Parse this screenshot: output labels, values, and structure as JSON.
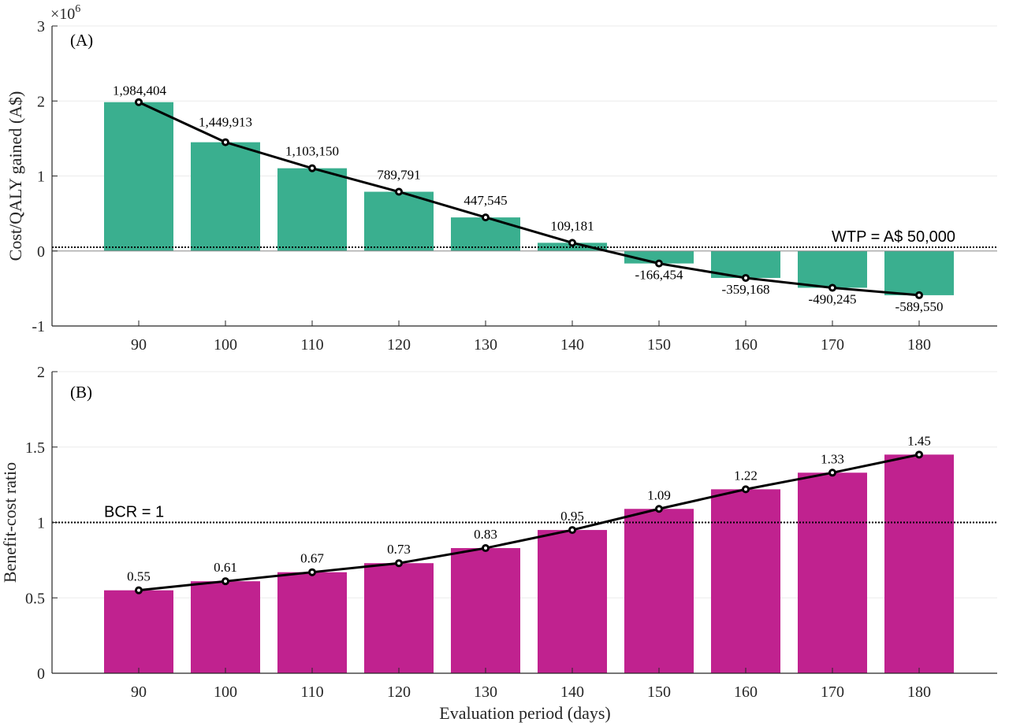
{
  "chart_data": [
    {
      "type": "bar",
      "panel_label": "(A)",
      "categories": [
        "90",
        "100",
        "110",
        "120",
        "130",
        "140",
        "150",
        "160",
        "170",
        "180"
      ],
      "values": [
        1984404,
        1449913,
        1103150,
        789791,
        447545,
        109181,
        -166454,
        -359168,
        -490245,
        -589550
      ],
      "value_labels": [
        "1,984,404",
        "1,449,913",
        "1,103,150",
        "789,791",
        "447,545",
        "109,181",
        "-166,454",
        "-359,168",
        "-490,245",
        "-589,550"
      ],
      "ylabel": "Cost/QALY gained (A$)",
      "ylim": [
        -1,
        3
      ],
      "yticks": [
        "-1",
        "0",
        "1",
        "2",
        "3"
      ],
      "y_multiplier_base": "×10",
      "y_multiplier_exp": "6",
      "reference_line": {
        "value": 50000,
        "label": "WTP = A$ 50,000"
      },
      "bar_color": "#3aaf8f",
      "overlay": "line-markers",
      "grid": "horizontal"
    },
    {
      "type": "bar",
      "panel_label": "(B)",
      "categories": [
        "90",
        "100",
        "110",
        "120",
        "130",
        "140",
        "150",
        "160",
        "170",
        "180"
      ],
      "values": [
        0.55,
        0.61,
        0.67,
        0.73,
        0.83,
        0.95,
        1.09,
        1.22,
        1.33,
        1.45
      ],
      "value_labels": [
        "0.55",
        "0.61",
        "0.67",
        "0.73",
        "0.83",
        "0.95",
        "1.09",
        "1.22",
        "1.33",
        "1.45"
      ],
      "ylabel": "Benefit-cost ratio",
      "xlabel": "Evaluation period (days)",
      "ylim": [
        0,
        2
      ],
      "yticks": [
        "0",
        "0.5",
        "1",
        "1.5",
        "2"
      ],
      "reference_line": {
        "value": 1,
        "label": "BCR = 1"
      },
      "bar_color": "#c0228f",
      "overlay": "line-markers",
      "grid": "horizontal"
    }
  ]
}
